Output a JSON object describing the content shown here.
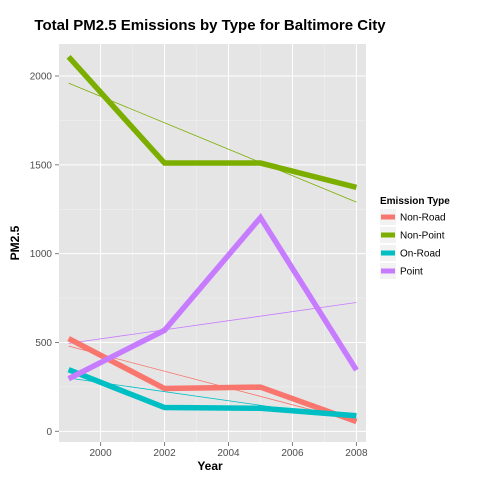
{
  "chart_data": {
    "type": "line",
    "title": "Total PM2.5 Emissions by Type for Baltimore City",
    "xlabel": "Year",
    "ylabel": "PM2.5",
    "xlim": [
      1998.7,
      2008.3
    ],
    "ylim": [
      -60,
      2180
    ],
    "x_ticks": [
      2000,
      2002,
      2004,
      2006,
      2008
    ],
    "y_ticks": [
      0,
      500,
      1000,
      1500,
      2000
    ],
    "x": [
      1999,
      2002,
      2005,
      2008
    ],
    "background": "#e5e5e5",
    "grid": true,
    "legend": {
      "title": "Emission Type",
      "position": "right"
    },
    "series": [
      {
        "name": "Non-Road",
        "color": "#f8766d",
        "values": [
          522,
          241,
          249,
          55
        ],
        "trend": [
          480,
          55
        ]
      },
      {
        "name": "Non-Point",
        "color": "#7cae00",
        "values": [
          2108,
          1510,
          1510,
          1373
        ],
        "trend": [
          1960,
          1290
        ]
      },
      {
        "name": "On-Road",
        "color": "#00bfc4",
        "values": [
          347,
          134,
          130,
          88
        ],
        "trend": [
          300,
          70
        ]
      },
      {
        "name": "Point",
        "color": "#c77cff",
        "values": [
          296,
          569,
          1203,
          345
        ],
        "trend": [
          495,
          725
        ]
      }
    ]
  }
}
